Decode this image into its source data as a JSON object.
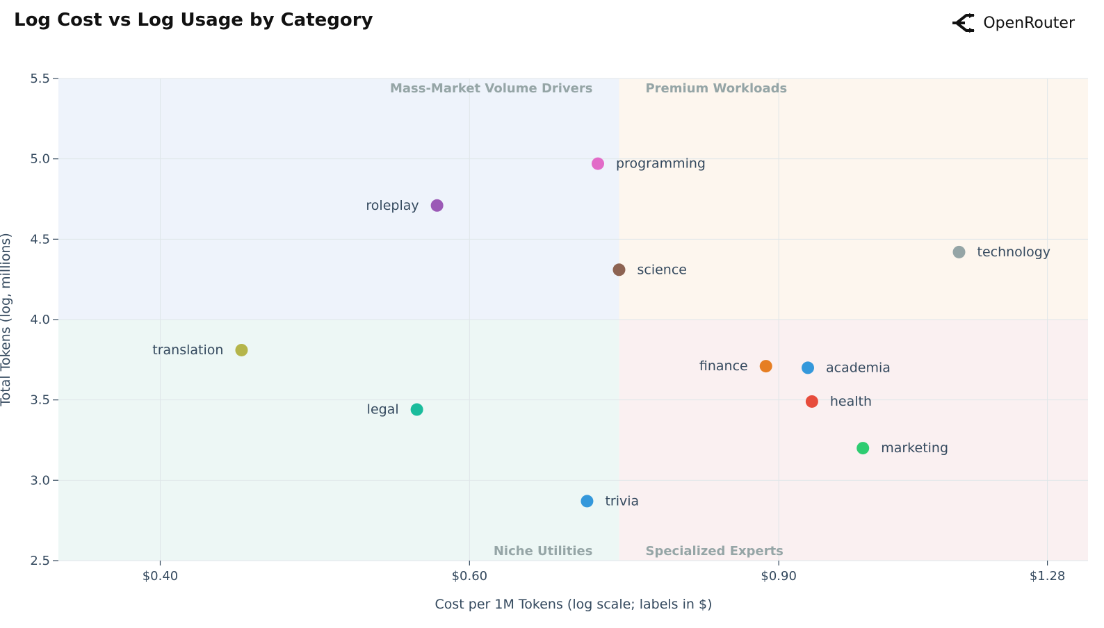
{
  "title": "Log Cost vs Log Usage by Category",
  "brand": {
    "name": "OpenRouter",
    "icon": "openrouter-logo-icon"
  },
  "chart_data": {
    "type": "scatter",
    "title": "Log Cost vs Log Usage by Category",
    "xlabel": "Cost per 1M Tokens (log scale; labels in $)",
    "ylabel": "Total Tokens (log, millions)",
    "x_scale": "log",
    "xlim": [
      0.35,
      1.35
    ],
    "ylim": [
      2.5,
      5.5
    ],
    "x_ticks": [
      {
        "value": 0.4,
        "label": "$0.40"
      },
      {
        "value": 0.6,
        "label": "$0.60"
      },
      {
        "value": 0.9,
        "label": "$0.90"
      },
      {
        "value": 1.28,
        "label": "$1.28"
      }
    ],
    "y_ticks": [
      {
        "value": 2.5,
        "label": "2.5"
      },
      {
        "value": 3.0,
        "label": "3.0"
      },
      {
        "value": 3.5,
        "label": "3.5"
      },
      {
        "value": 4.0,
        "label": "4.0"
      },
      {
        "value": 4.5,
        "label": "4.5"
      },
      {
        "value": 5.0,
        "label": "5.0"
      },
      {
        "value": 5.5,
        "label": "5.5"
      }
    ],
    "grid": true,
    "quadrant_split": {
      "x": 0.73,
      "y": 4.0
    },
    "quadrants": [
      {
        "name": "Mass-Market Volume Drivers",
        "position": "top-left",
        "color": "#eef3fb"
      },
      {
        "name": "Premium Workloads",
        "position": "top-right",
        "color": "#fdf6ee"
      },
      {
        "name": "Niche Utilities",
        "position": "bottom-left",
        "color": "#edf7f5"
      },
      {
        "name": "Specialized Experts",
        "position": "bottom-right",
        "color": "#faf0f1"
      }
    ],
    "points": [
      {
        "label": "programming",
        "x": 0.71,
        "y": 4.97,
        "color": "#e26bc8",
        "label_side": "right"
      },
      {
        "label": "roleplay",
        "x": 0.575,
        "y": 4.71,
        "color": "#9b59b6",
        "label_side": "left"
      },
      {
        "label": "science",
        "x": 0.73,
        "y": 4.31,
        "color": "#8d6352",
        "label_side": "right"
      },
      {
        "label": "technology",
        "x": 1.14,
        "y": 4.42,
        "color": "#95a5a6",
        "label_side": "right"
      },
      {
        "label": "translation",
        "x": 0.445,
        "y": 3.81,
        "color": "#b5b54a",
        "label_side": "left"
      },
      {
        "label": "legal",
        "x": 0.56,
        "y": 3.44,
        "color": "#1abc9c",
        "label_side": "left"
      },
      {
        "label": "finance",
        "x": 0.885,
        "y": 3.71,
        "color": "#e67e22",
        "label_side": "left"
      },
      {
        "label": "academia",
        "x": 0.935,
        "y": 3.7,
        "color": "#3498db",
        "label_side": "right"
      },
      {
        "label": "health",
        "x": 0.94,
        "y": 3.49,
        "color": "#e74c3c",
        "label_side": "right"
      },
      {
        "label": "marketing",
        "x": 1.005,
        "y": 3.2,
        "color": "#2ecc71",
        "label_side": "right"
      },
      {
        "label": "trivia",
        "x": 0.7,
        "y": 2.87,
        "color": "#3498db",
        "label_side": "right"
      }
    ]
  }
}
